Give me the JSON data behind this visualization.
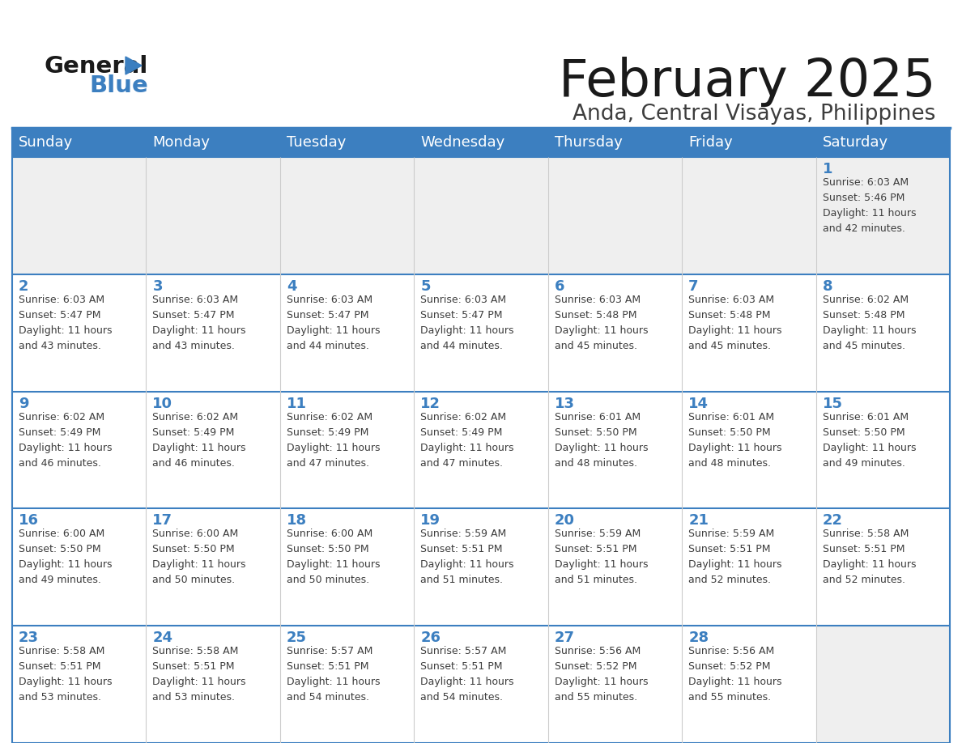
{
  "title": "February 2025",
  "subtitle": "Anda, Central Visayas, Philippines",
  "header_bg_color": "#3C7FC0",
  "header_text_color": "#FFFFFF",
  "cell_bg_white": "#FFFFFF",
  "cell_bg_gray": "#EFEFEF",
  "day_number_color": "#3C7FC0",
  "text_color": "#3D3D3D",
  "border_color": "#3C7FC0",
  "days_of_week": [
    "Sunday",
    "Monday",
    "Tuesday",
    "Wednesday",
    "Thursday",
    "Friday",
    "Saturday"
  ],
  "calendar_data": [
    [
      {
        "day": null,
        "sunrise": null,
        "sunset": null,
        "daylight": null
      },
      {
        "day": null,
        "sunrise": null,
        "sunset": null,
        "daylight": null
      },
      {
        "day": null,
        "sunrise": null,
        "sunset": null,
        "daylight": null
      },
      {
        "day": null,
        "sunrise": null,
        "sunset": null,
        "daylight": null
      },
      {
        "day": null,
        "sunrise": null,
        "sunset": null,
        "daylight": null
      },
      {
        "day": null,
        "sunrise": null,
        "sunset": null,
        "daylight": null
      },
      {
        "day": 1,
        "sunrise": "6:03 AM",
        "sunset": "5:46 PM",
        "daylight": "11 hours\nand 42 minutes."
      }
    ],
    [
      {
        "day": 2,
        "sunrise": "6:03 AM",
        "sunset": "5:47 PM",
        "daylight": "11 hours\nand 43 minutes."
      },
      {
        "day": 3,
        "sunrise": "6:03 AM",
        "sunset": "5:47 PM",
        "daylight": "11 hours\nand 43 minutes."
      },
      {
        "day": 4,
        "sunrise": "6:03 AM",
        "sunset": "5:47 PM",
        "daylight": "11 hours\nand 44 minutes."
      },
      {
        "day": 5,
        "sunrise": "6:03 AM",
        "sunset": "5:47 PM",
        "daylight": "11 hours\nand 44 minutes."
      },
      {
        "day": 6,
        "sunrise": "6:03 AM",
        "sunset": "5:48 PM",
        "daylight": "11 hours\nand 45 minutes."
      },
      {
        "day": 7,
        "sunrise": "6:03 AM",
        "sunset": "5:48 PM",
        "daylight": "11 hours\nand 45 minutes."
      },
      {
        "day": 8,
        "sunrise": "6:02 AM",
        "sunset": "5:48 PM",
        "daylight": "11 hours\nand 45 minutes."
      }
    ],
    [
      {
        "day": 9,
        "sunrise": "6:02 AM",
        "sunset": "5:49 PM",
        "daylight": "11 hours\nand 46 minutes."
      },
      {
        "day": 10,
        "sunrise": "6:02 AM",
        "sunset": "5:49 PM",
        "daylight": "11 hours\nand 46 minutes."
      },
      {
        "day": 11,
        "sunrise": "6:02 AM",
        "sunset": "5:49 PM",
        "daylight": "11 hours\nand 47 minutes."
      },
      {
        "day": 12,
        "sunrise": "6:02 AM",
        "sunset": "5:49 PM",
        "daylight": "11 hours\nand 47 minutes."
      },
      {
        "day": 13,
        "sunrise": "6:01 AM",
        "sunset": "5:50 PM",
        "daylight": "11 hours\nand 48 minutes."
      },
      {
        "day": 14,
        "sunrise": "6:01 AM",
        "sunset": "5:50 PM",
        "daylight": "11 hours\nand 48 minutes."
      },
      {
        "day": 15,
        "sunrise": "6:01 AM",
        "sunset": "5:50 PM",
        "daylight": "11 hours\nand 49 minutes."
      }
    ],
    [
      {
        "day": 16,
        "sunrise": "6:00 AM",
        "sunset": "5:50 PM",
        "daylight": "11 hours\nand 49 minutes."
      },
      {
        "day": 17,
        "sunrise": "6:00 AM",
        "sunset": "5:50 PM",
        "daylight": "11 hours\nand 50 minutes."
      },
      {
        "day": 18,
        "sunrise": "6:00 AM",
        "sunset": "5:50 PM",
        "daylight": "11 hours\nand 50 minutes."
      },
      {
        "day": 19,
        "sunrise": "5:59 AM",
        "sunset": "5:51 PM",
        "daylight": "11 hours\nand 51 minutes."
      },
      {
        "day": 20,
        "sunrise": "5:59 AM",
        "sunset": "5:51 PM",
        "daylight": "11 hours\nand 51 minutes."
      },
      {
        "day": 21,
        "sunrise": "5:59 AM",
        "sunset": "5:51 PM",
        "daylight": "11 hours\nand 52 minutes."
      },
      {
        "day": 22,
        "sunrise": "5:58 AM",
        "sunset": "5:51 PM",
        "daylight": "11 hours\nand 52 minutes."
      }
    ],
    [
      {
        "day": 23,
        "sunrise": "5:58 AM",
        "sunset": "5:51 PM",
        "daylight": "11 hours\nand 53 minutes."
      },
      {
        "day": 24,
        "sunrise": "5:58 AM",
        "sunset": "5:51 PM",
        "daylight": "11 hours\nand 53 minutes."
      },
      {
        "day": 25,
        "sunrise": "5:57 AM",
        "sunset": "5:51 PM",
        "daylight": "11 hours\nand 54 minutes."
      },
      {
        "day": 26,
        "sunrise": "5:57 AM",
        "sunset": "5:51 PM",
        "daylight": "11 hours\nand 54 minutes."
      },
      {
        "day": 27,
        "sunrise": "5:56 AM",
        "sunset": "5:52 PM",
        "daylight": "11 hours\nand 55 minutes."
      },
      {
        "day": 28,
        "sunrise": "5:56 AM",
        "sunset": "5:52 PM",
        "daylight": "11 hours\nand 55 minutes."
      },
      {
        "day": null,
        "sunrise": null,
        "sunset": null,
        "daylight": null
      }
    ]
  ],
  "logo_color_general": "#1A1A1A",
  "logo_color_blue": "#3C7FC0",
  "logo_triangle_color": "#3C7FC0",
  "title_color": "#1A1A1A",
  "subtitle_color": "#3D3D3D",
  "figwidth": 11.88,
  "figheight": 9.18,
  "dpi": 100
}
